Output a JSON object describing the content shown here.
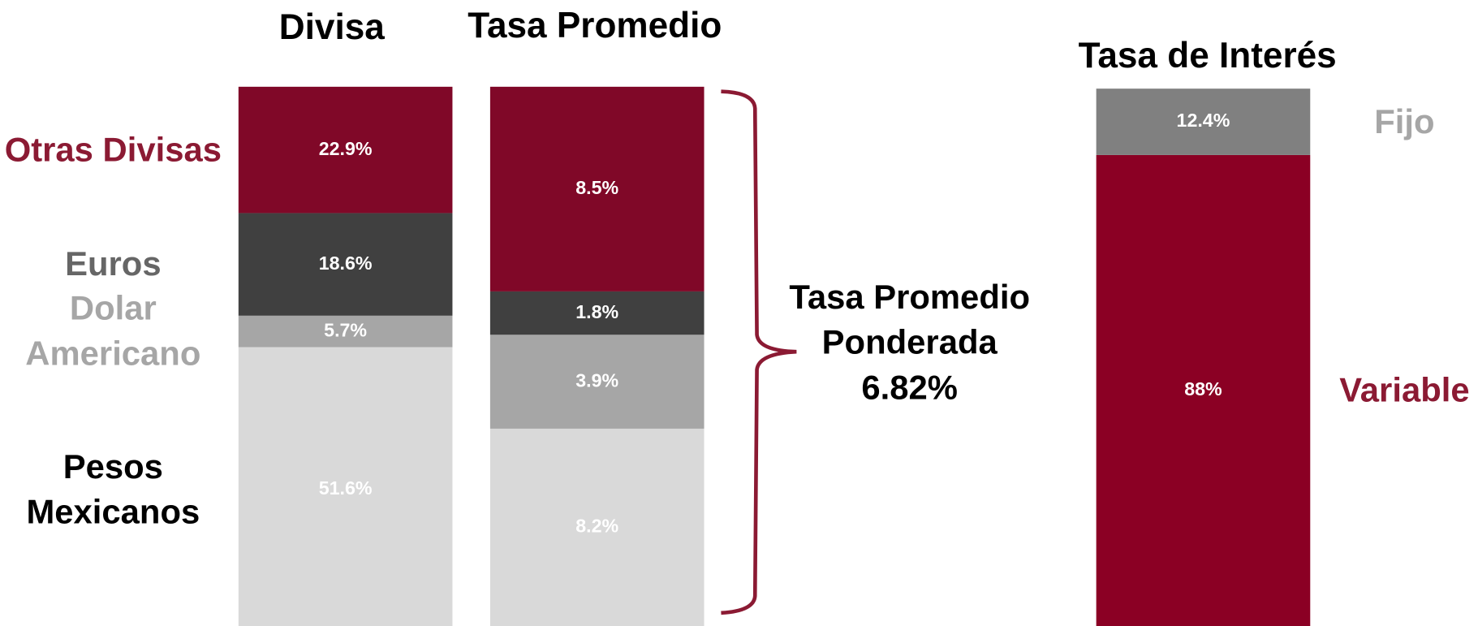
{
  "chart_data": [
    {
      "type": "stacked_bar",
      "title": "Divisa",
      "legend": "left",
      "series": [
        {
          "name": "Pesos Mexicanos",
          "color": "#d9d9d9",
          "label_color": "#000000",
          "values": [
            51.6
          ],
          "value_labels": [
            "51.6%"
          ]
        },
        {
          "name": "Dolar Americano",
          "color": "#a6a6a6",
          "label_color": "#a6a6a6",
          "values": [
            5.7
          ],
          "value_labels": [
            "5.7%"
          ]
        },
        {
          "name": "Euros",
          "color": "#404040",
          "label_color": "#666666",
          "values": [
            18.6
          ],
          "value_labels": [
            "18.6%"
          ]
        },
        {
          "name": "Otras Divisas",
          "color": "#800828",
          "label_color": "#8b1a33",
          "values": [
            22.9
          ],
          "value_labels": [
            "22.9%"
          ]
        }
      ]
    },
    {
      "type": "stacked_bar",
      "title": "Tasa Promedio",
      "annotation": [
        "Tasa Promedio",
        "Ponderada",
        "6.82%"
      ],
      "series": [
        {
          "color": "#d9d9d9",
          "values": [
            8.2
          ],
          "value_labels": [
            "8.2%"
          ]
        },
        {
          "color": "#a6a6a6",
          "values": [
            3.9
          ],
          "value_labels": [
            "3.9%"
          ]
        },
        {
          "color": "#404040",
          "values": [
            1.8
          ],
          "value_labels": [
            "1.8%"
          ]
        },
        {
          "color": "#800828",
          "values": [
            8.5
          ],
          "value_labels": [
            "8.5%"
          ]
        }
      ]
    },
    {
      "type": "stacked_bar",
      "title": "Tasa de Interés",
      "legend": "right",
      "series": [
        {
          "name": "Variable",
          "color": "#8b0024",
          "label_color": "#8b1a33",
          "values": [
            88
          ],
          "value_labels": [
            "88%"
          ]
        },
        {
          "name": "Fijo",
          "color": "#808080",
          "label_color": "#a6a6a6",
          "values": [
            12.4
          ],
          "value_labels": [
            "12.4%"
          ]
        }
      ]
    }
  ]
}
